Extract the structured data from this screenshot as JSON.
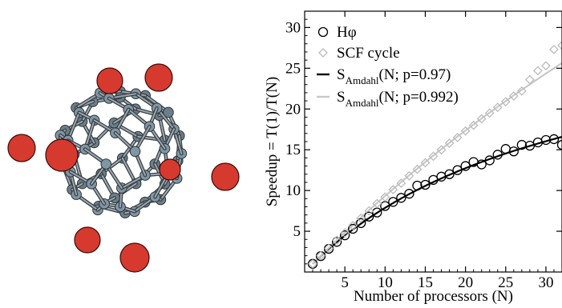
{
  "chart_data": {
    "type": "scatter",
    "xlabel": "Number of processors (N)",
    "ylabel": "Speedup = T(1)/T(N)",
    "xlim": [
      0,
      32
    ],
    "ylim": [
      0,
      32
    ],
    "xticks": [
      5,
      10,
      15,
      20,
      25,
      30
    ],
    "yticks": [
      5,
      10,
      15,
      20,
      25,
      30
    ],
    "legend_position": "top-left",
    "series": [
      {
        "name": "Hφ",
        "kind": "markers",
        "marker": "circle",
        "color": "#000000",
        "x": [
          1,
          2,
          3,
          4,
          5,
          6,
          7,
          8,
          9,
          10,
          11,
          12,
          13,
          14,
          15,
          16,
          17,
          18,
          19,
          20,
          21,
          22,
          23,
          24,
          25,
          26,
          27,
          28,
          29,
          30,
          31,
          32
        ],
        "y": [
          1.0,
          1.95,
          2.85,
          3.7,
          4.5,
          5.3,
          6.0,
          6.8,
          7.3,
          8.1,
          8.6,
          9.1,
          9.6,
          10.6,
          10.7,
          11.3,
          11.7,
          12.0,
          12.5,
          13.0,
          13.5,
          13.2,
          13.7,
          14.4,
          15.1,
          14.8,
          15.6,
          15.5,
          15.9,
          16.2,
          16.3,
          15.6
        ]
      },
      {
        "name": "SCF cycle",
        "kind": "markers",
        "marker": "diamond",
        "color": "#bbbbbb",
        "x": [
          1,
          2,
          3,
          4,
          5,
          6,
          7,
          8,
          9,
          10,
          11,
          12,
          13,
          14,
          15,
          16,
          17,
          18,
          19,
          20,
          21,
          22,
          23,
          24,
          25,
          26,
          27,
          28,
          29,
          30,
          31,
          32
        ],
        "y": [
          1.0,
          2.0,
          2.9,
          3.9,
          4.8,
          5.7,
          6.6,
          7.5,
          8.4,
          9.2,
          10.1,
          10.9,
          11.8,
          12.6,
          13.4,
          14.2,
          15.0,
          15.8,
          16.5,
          17.3,
          18.0,
          18.8,
          19.5,
          20.2,
          20.9,
          21.6,
          22.2,
          23.6,
          24.7,
          25.3,
          27.3,
          27.8
        ]
      },
      {
        "name": "S",
        "name_sub": "Amdahl",
        "name_rest": "(N; p=0.97)",
        "kind": "line",
        "p": 0.97,
        "color": "#000000"
      },
      {
        "name": "S",
        "name_sub": "Amdahl",
        "name_rest": "(N; p=0.992)",
        "kind": "line",
        "p": 0.992,
        "color": "#c8c8c8"
      }
    ]
  },
  "molecule": {
    "cage_color": "#7f96a3",
    "ion_color": "#d63a2f"
  }
}
